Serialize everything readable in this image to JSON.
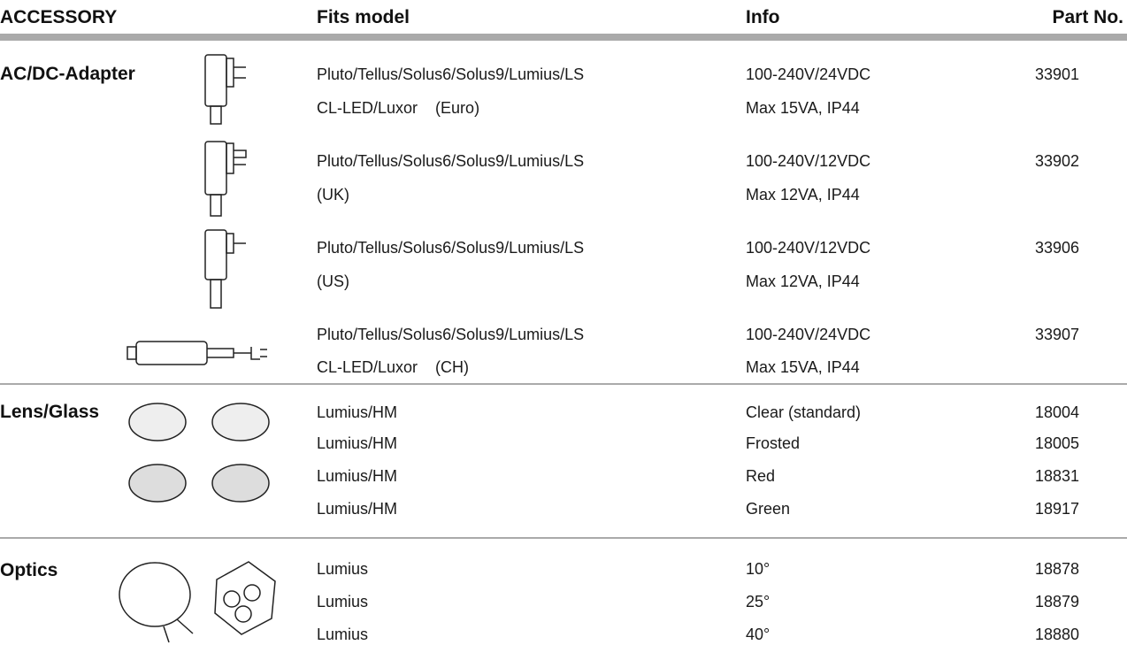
{
  "header": {
    "accessory": "ACCESSORY",
    "fits_model": "Fits model",
    "info": "Info",
    "part_no": "Part No."
  },
  "sections": [
    {
      "name": "AC/DC-Adapter",
      "rows": [
        {
          "model": [
            "Pluto/Tellus/Solus6/Solus9/Lumius/LS",
            "CL-LED/Luxor    (Euro)"
          ],
          "info": [
            "100-240V/24VDC",
            "Max 15VA, IP44"
          ],
          "part": "33901"
        },
        {
          "model": [
            "Pluto/Tellus/Solus6/Solus9/Lumius/LS",
            "(UK)"
          ],
          "info": [
            "100-240V/12VDC",
            "Max 12VA, IP44"
          ],
          "part": "33902"
        },
        {
          "model": [
            "Pluto/Tellus/Solus6/Solus9/Lumius/LS",
            "(US)"
          ],
          "info": [
            "100-240V/12VDC",
            "Max 12VA, IP44"
          ],
          "part": "33906"
        },
        {
          "model": [
            "Pluto/Tellus/Solus6/Solus9/Lumius/LS",
            "CL-LED/Luxor    (CH)"
          ],
          "info": [
            "100-240V/24VDC",
            "Max 15VA, IP44"
          ],
          "part": "33907"
        }
      ]
    },
    {
      "name": "Lens/Glass",
      "rows": [
        {
          "model": [
            "Lumius/HM"
          ],
          "info": [
            "Clear (standard)"
          ],
          "part": "18004"
        },
        {
          "model": [
            "Lumius/HM"
          ],
          "info": [
            "Frosted"
          ],
          "part": "18005"
        },
        {
          "model": [
            "Lumius/HM"
          ],
          "info": [
            "Red"
          ],
          "part": "18831"
        },
        {
          "model": [
            "Lumius/HM"
          ],
          "info": [
            "Green"
          ],
          "part": "18917"
        }
      ]
    },
    {
      "name": "Optics",
      "rows": [
        {
          "model": [
            "Lumius"
          ],
          "info": [
            "10°"
          ],
          "part": "18878"
        },
        {
          "model": [
            "Lumius"
          ],
          "info": [
            "25°"
          ],
          "part": "18879"
        },
        {
          "model": [
            "Lumius"
          ],
          "info": [
            "40°"
          ],
          "part": "18880"
        }
      ]
    }
  ]
}
